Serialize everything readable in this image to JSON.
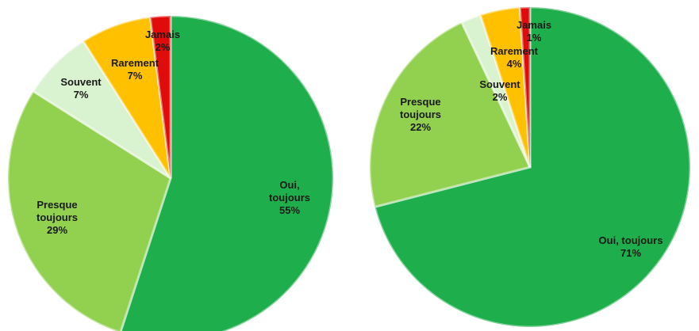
{
  "chart_data": [
    {
      "type": "pie",
      "categories": [
        "Oui, toujours",
        "Presque toujours",
        "Souvent",
        "Rarement",
        "Jamais"
      ],
      "values": [
        55,
        29,
        7,
        7,
        2
      ],
      "value_labels": [
        "55%",
        "29%",
        "7%",
        "7%",
        "2%"
      ],
      "colors": [
        "#1eae4b",
        "#92d050",
        "#d9f2d0",
        "#ffc000",
        "#e00b0b"
      ]
    },
    {
      "type": "pie",
      "categories": [
        "Oui, toujours",
        "Presque toujours",
        "Souvent",
        "Rarement",
        "Jamais"
      ],
      "values": [
        71,
        22,
        2,
        4,
        1
      ],
      "value_labels": [
        "71%",
        "22%",
        "2%",
        "4%",
        "1%"
      ],
      "colors": [
        "#1eae4b",
        "#92d050",
        "#d9f2d0",
        "#ffc000",
        "#e00b0b"
      ]
    }
  ]
}
